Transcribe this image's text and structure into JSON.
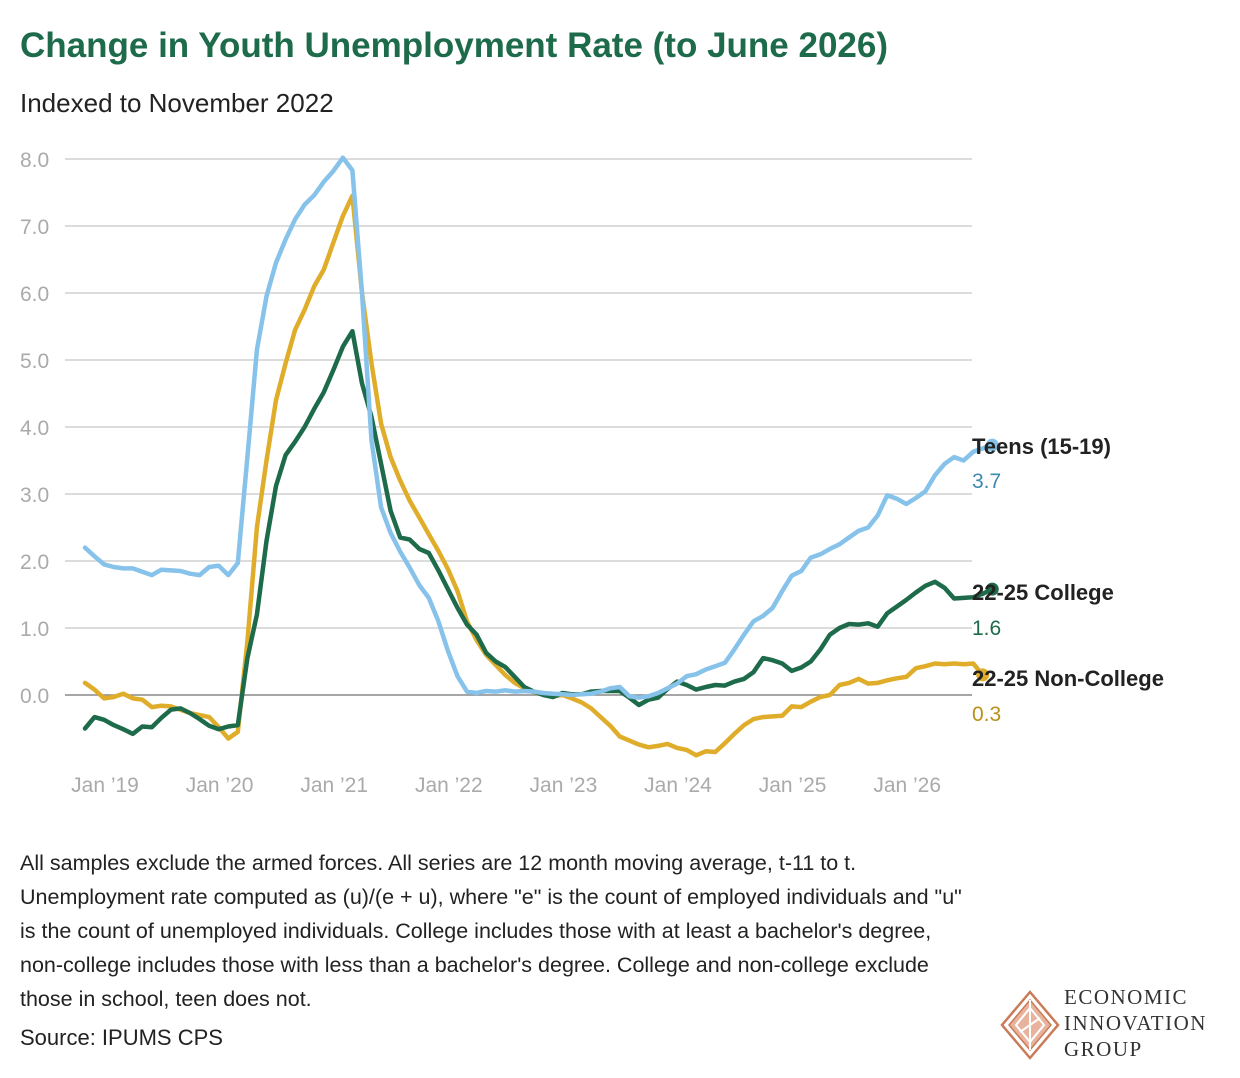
{
  "title": "Change in Youth Unemployment Rate (to June 2026)",
  "subtitle": "Indexed to November 2022",
  "footnote": "All samples exclude the armed forces. All series are 12 month moving average, t-11 to t. Unemployment rate computed as (u)/(e + u), where \"e\" is the count of employed individuals and \"u\" is the count of unemployed individuals. College includes those with at least a bachelor's degree, non-college includes those with less than a bachelor's degree. College and non-college exclude those in school, teen does not.",
  "source": "Source: IPUMS CPS",
  "logo": {
    "line1": "ECONOMIC",
    "line2": "INNOVATION",
    "line3": "GROUP"
  },
  "chart_data": {
    "type": "line",
    "y_ticks": [
      "8.0",
      "7.0",
      "6.0",
      "5.0",
      "4.0",
      "3.0",
      "2.0",
      "1.0",
      "0.0"
    ],
    "ylim": [
      -1,
      8
    ],
    "x_ticks": [
      "Jan ’19",
      "Jan ’20",
      "Jan ’21",
      "Jan ’22",
      "Jan ’23",
      "Jan ’24",
      "Jan ’25",
      "Jan ’26"
    ],
    "grid": true,
    "x": {
      "start": "2019-01",
      "end": "2026-06",
      "frequency": "monthly"
    },
    "series": [
      {
        "name": "Teens (15-19)",
        "color": "#86c2ea",
        "end_label": "3.7",
        "label_color": "#3f88b0",
        "values": [
          2.2,
          2.07,
          1.95,
          1.91,
          1.89,
          1.89,
          1.84,
          1.79,
          1.87,
          1.86,
          1.85,
          1.81,
          1.79,
          1.91,
          1.93,
          1.79,
          1.97,
          3.55,
          5.15,
          5.95,
          6.45,
          6.8,
          7.1,
          7.32,
          7.46,
          7.66,
          7.82,
          8.02,
          7.83,
          6.0,
          3.8,
          2.8,
          2.42,
          2.14,
          1.9,
          1.64,
          1.45,
          1.1,
          0.66,
          0.28,
          0.05,
          0.03,
          0.06,
          0.05,
          0.07,
          0.05,
          0.06,
          0.05,
          0.03,
          0.02,
          0.01,
          0.0,
          0.01,
          0.02,
          0.05,
          0.1,
          0.12,
          -0.02,
          -0.04,
          -0.02,
          0.03,
          0.1,
          0.17,
          0.28,
          0.31,
          0.38,
          0.43,
          0.48,
          0.68,
          0.9,
          1.1,
          1.18,
          1.3,
          1.55,
          1.78,
          1.85,
          2.05,
          2.1,
          2.18,
          2.25,
          2.35,
          2.45,
          2.5,
          2.68,
          2.98,
          2.93,
          2.85,
          2.94,
          3.04,
          3.28,
          3.45,
          3.55,
          3.5,
          3.63,
          3.68,
          3.73
        ]
      },
      {
        "name": "22-25 College",
        "color": "#1d6b4a",
        "end_label": "1.6",
        "label_color": "#1d6b4a",
        "values": [
          -0.5,
          -0.33,
          -0.37,
          -0.45,
          -0.51,
          -0.58,
          -0.47,
          -0.48,
          -0.34,
          -0.22,
          -0.2,
          -0.27,
          -0.36,
          -0.46,
          -0.51,
          -0.47,
          -0.45,
          0.55,
          1.2,
          2.3,
          3.12,
          3.58,
          3.78,
          4.0,
          4.27,
          4.52,
          4.85,
          5.2,
          5.43,
          4.65,
          4.15,
          3.45,
          2.75,
          2.35,
          2.32,
          2.18,
          2.12,
          1.86,
          1.58,
          1.3,
          1.05,
          0.9,
          0.63,
          0.5,
          0.42,
          0.27,
          0.12,
          0.05,
          0.0,
          -0.03,
          0.03,
          0.01,
          0.01,
          0.05,
          0.06,
          0.06,
          0.06,
          -0.04,
          -0.15,
          -0.07,
          -0.04,
          0.09,
          0.2,
          0.15,
          0.08,
          0.12,
          0.15,
          0.14,
          0.2,
          0.24,
          0.34,
          0.55,
          0.52,
          0.47,
          0.36,
          0.41,
          0.5,
          0.68,
          0.9,
          1.0,
          1.06,
          1.05,
          1.07,
          1.02,
          1.22,
          1.32,
          1.42,
          1.53,
          1.63,
          1.69,
          1.6,
          1.44,
          1.45,
          1.46,
          1.51,
          1.58
        ]
      },
      {
        "name": "22-25 Non-College",
        "color": "#e0ad2a",
        "end_label": "0.3",
        "label_color": "#b8901a",
        "values": [
          0.18,
          0.08,
          -0.05,
          -0.03,
          0.02,
          -0.05,
          -0.07,
          -0.18,
          -0.16,
          -0.17,
          -0.22,
          -0.27,
          -0.3,
          -0.33,
          -0.48,
          -0.65,
          -0.55,
          0.8,
          2.5,
          3.5,
          4.4,
          4.95,
          5.45,
          5.75,
          6.1,
          6.35,
          6.75,
          7.15,
          7.45,
          6.0,
          4.95,
          4.05,
          3.55,
          3.2,
          2.9,
          2.65,
          2.4,
          2.15,
          1.88,
          1.55,
          1.1,
          0.82,
          0.6,
          0.45,
          0.3,
          0.18,
          0.1,
          0.04,
          0.01,
          -0.02,
          0.0,
          -0.05,
          -0.11,
          -0.2,
          -0.33,
          -0.46,
          -0.62,
          -0.68,
          -0.74,
          -0.78,
          -0.76,
          -0.73,
          -0.79,
          -0.82,
          -0.9,
          -0.84,
          -0.85,
          -0.72,
          -0.58,
          -0.45,
          -0.36,
          -0.33,
          -0.32,
          -0.31,
          -0.17,
          -0.18,
          -0.1,
          -0.03,
          0.0,
          0.15,
          0.18,
          0.24,
          0.17,
          0.18,
          0.22,
          0.25,
          0.27,
          0.4,
          0.43,
          0.47,
          0.46,
          0.47,
          0.46,
          0.47,
          0.3
        ]
      }
    ]
  }
}
